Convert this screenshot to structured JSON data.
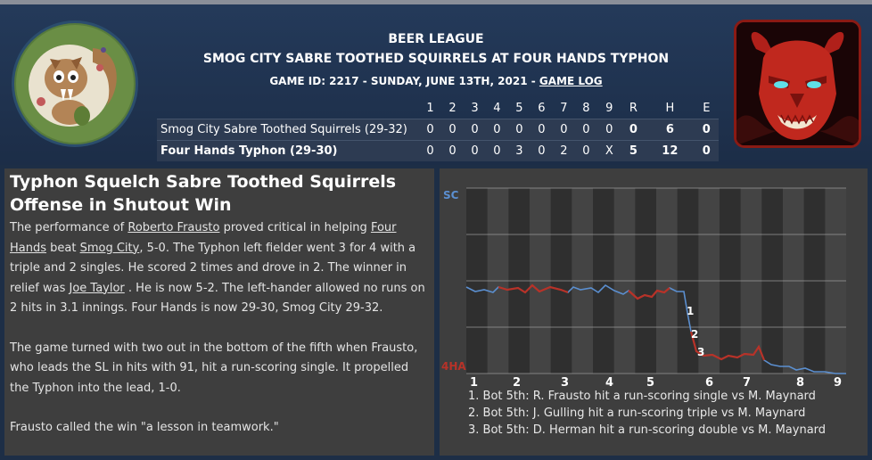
{
  "header": {
    "league": "BEER LEAGUE",
    "matchup": "SMOG CITY SABRE TOOTHED SQUIRRELS AT FOUR HANDS TYPHON",
    "game_info": "GAME ID: 2217 - SUNDAY, JUNE 13TH, 2021 - ",
    "game_log_link": "GAME LOG"
  },
  "linescore": {
    "columns": [
      "1",
      "2",
      "3",
      "4",
      "5",
      "6",
      "7",
      "8",
      "9",
      "R",
      "H",
      "E"
    ],
    "rows": [
      {
        "team": "Smog City Sabre Toothed Squirrels (29-32)",
        "cells": [
          "0",
          "0",
          "0",
          "0",
          "0",
          "0",
          "0",
          "0",
          "0",
          "0",
          "6",
          "0"
        ]
      },
      {
        "team": "Four Hands Typhon (29-30)",
        "cells": [
          "0",
          "0",
          "0",
          "0",
          "3",
          "0",
          "2",
          "0",
          "X",
          "5",
          "12",
          "0"
        ]
      }
    ]
  },
  "story": {
    "headline": "Typhon Squelch Sabre Toothed Squirrels Offense in Shutout Win",
    "p1": {
      "t1": "The performance of ",
      "l1": "Roberto Frausto",
      "t2": " proved critical in helping ",
      "l2": "Four Hands",
      "t3": " beat ",
      "l3": "Smog City",
      "t4": ", 5-0. The Typhon left fielder went 3 for 4 with a triple and 2 singles. He scored 2 times and drove in 2. The winner in relief was ",
      "l4": "Joe Taylor",
      "t5": " . He is now 5-2. The left-hander allowed no runs on 2 hits in 3.1 innings. Four Hands is now 29-30, Smog City 29-32."
    },
    "p2": "The game turned with two out in the bottom of the fifth when Frausto, who leads the SL in hits with 91, hit a run-scoring single. It propelled the Typhon into the lead, 1-0.",
    "p3": "Frausto called the win \"a lesson in teamwork.\""
  },
  "win_prob_chart": {
    "top_label": "SC",
    "bottom_label": "4HA",
    "innings": [
      "1",
      "2",
      "3",
      "4",
      "5",
      "6",
      "7",
      "8",
      "9"
    ],
    "away_color": "#5b8fd0",
    "home_color": "#b83228",
    "markers": [
      "1",
      "2",
      "3"
    ],
    "events": [
      "1. Bot 5th: R. Frausto hit a run-scoring single vs M. Maynard",
      "2. Bot 5th: J. Gulling hit a run-scoring triple vs M. Maynard",
      "3. Bot 5th: D. Herman hit a run-scoring double vs M. Maynard"
    ]
  }
}
